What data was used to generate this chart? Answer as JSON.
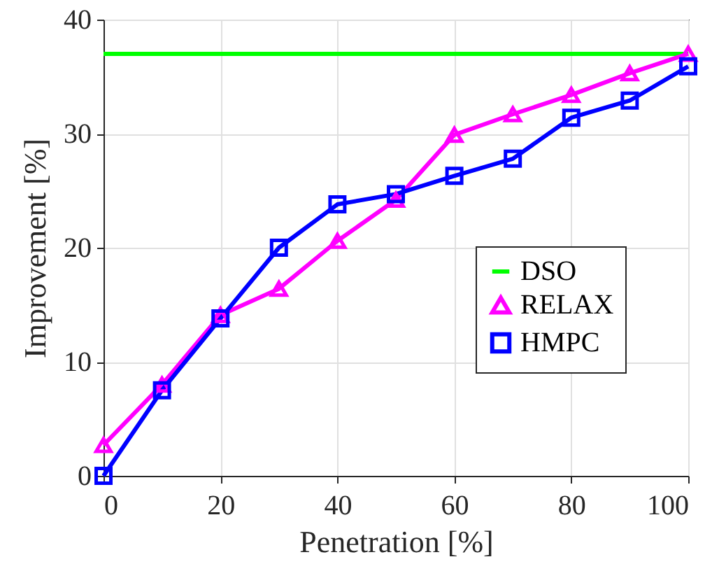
{
  "chart_data": {
    "type": "line",
    "xlabel": "Penetration [%]",
    "ylabel": "Improvement [%]",
    "x": [
      0,
      10,
      20,
      30,
      40,
      50,
      60,
      70,
      80,
      90,
      100
    ],
    "series": [
      {
        "name": "DSO",
        "color": "#00ff00",
        "x": [
          0,
          100
        ],
        "values": [
          37,
          37
        ],
        "marker": "none"
      },
      {
        "name": "RELAX",
        "color": "#ff00ff",
        "values": [
          2.7,
          8,
          14.1,
          16.4,
          20.6,
          24.2,
          29.9,
          31.7,
          33.4,
          35.3,
          37
        ],
        "marker": "triangle"
      },
      {
        "name": "HMPC",
        "color": "#0000ff",
        "values": [
          0,
          7.5,
          13.8,
          20,
          23.8,
          24.7,
          26.3,
          27.8,
          31.4,
          32.9,
          35.9
        ],
        "marker": "square"
      }
    ],
    "xlim": [
      0,
      100
    ],
    "xticks": [
      0,
      20,
      40,
      60,
      80,
      100
    ],
    "ylim": [
      0,
      40
    ],
    "yticks": [
      0,
      10,
      20,
      30,
      40
    ],
    "grid": true,
    "legend": "right",
    "line_style": "solid"
  }
}
